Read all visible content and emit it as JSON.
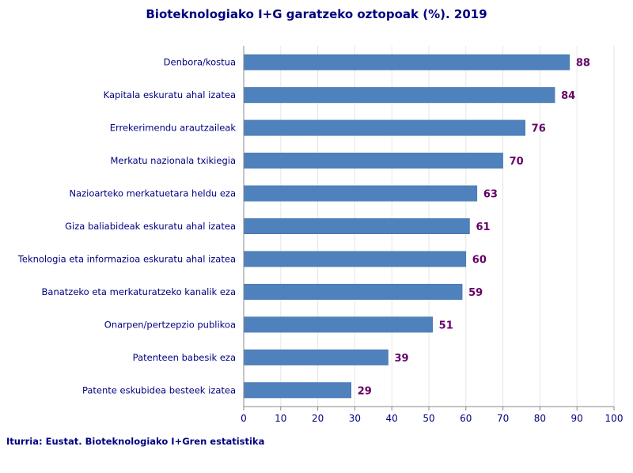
{
  "chart_data": {
    "type": "bar",
    "orientation": "horizontal",
    "title": "Bioteknologiako I+G garatzeko oztopoak (%). 2019",
    "categories": [
      "Denbora/kostua",
      "Kapitala eskuratu ahal izatea",
      "Errekerimendu arautzaileak",
      "Merkatu nazionala txikiegia",
      "Nazioarteko merkatuetara heldu eza",
      "Giza baliabideak eskuratu ahal izatea",
      "Teknologia eta informazioa eskuratu ahal izatea",
      "Banatzeko eta merkaturatzeko kanalik eza",
      "Onarpen/pertzepzio publikoa",
      "Patenteen babesik eza",
      "Patente eskubidea besteek izatea"
    ],
    "values": [
      88,
      84,
      76,
      70,
      63,
      61,
      60,
      59,
      51,
      39,
      29
    ],
    "xlim": [
      0,
      100
    ],
    "xticks": [
      "0",
      "10",
      "20",
      "30",
      "40",
      "50",
      "60",
      "70",
      "80",
      "90",
      "100"
    ],
    "grid": true,
    "bar_color": "#4F81BD",
    "label_color": "#660066",
    "text_color": "#000080"
  },
  "source": "Iturria: Eustat. Bioteknologiako I+Gren estatistika"
}
